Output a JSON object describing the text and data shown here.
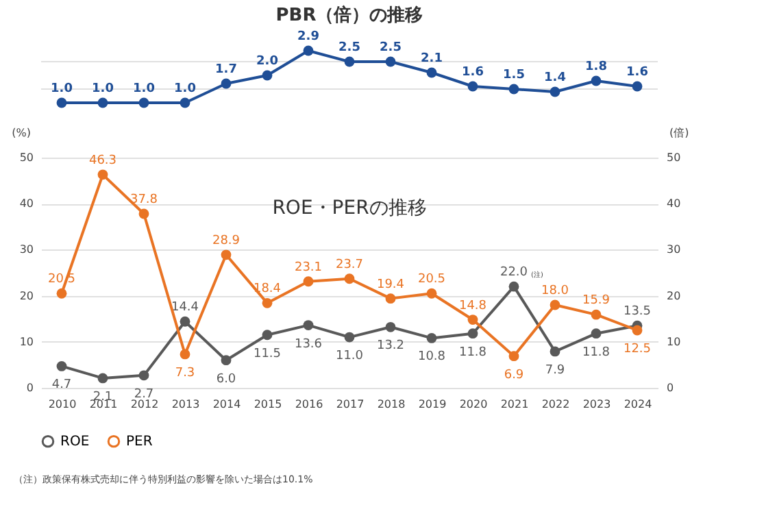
{
  "chart_data": [
    {
      "type": "line",
      "title": "PBR（倍）の推移",
      "categories": [
        "2010",
        "2011",
        "2012",
        "2013",
        "2014",
        "2015",
        "2016",
        "2017",
        "2018",
        "2019",
        "2020",
        "2021",
        "2022",
        "2023",
        "2024"
      ],
      "series": [
        {
          "color": "#1f4e96",
          "values": [
            1.0,
            1.0,
            1.0,
            1.0,
            1.7,
            2.0,
            2.9,
            2.5,
            2.5,
            2.1,
            1.6,
            1.5,
            1.4,
            1.8,
            1.6
          ],
          "value_labels": [
            "1.0",
            "1.0",
            "1.0",
            "1.0",
            "1.7",
            "2.0",
            "2.9",
            "2.5",
            "2.5",
            "2.1",
            "1.6",
            "1.5",
            "1.4",
            "1.8",
            "1.6"
          ]
        }
      ],
      "ref_lines": [
        {
          "axis": "y",
          "value": 1.5,
          "color": "#e0e0e0"
        },
        {
          "axis": "y",
          "value": 2.5,
          "color": "#e0e0e0"
        }
      ],
      "tick_labels": false,
      "data_labels": true,
      "marker": "circle",
      "line_style": "solid"
    },
    {
      "type": "line",
      "title": "ROE・PERの推移",
      "categories": [
        "2010",
        "2011",
        "2012",
        "2013",
        "2014",
        "2015",
        "2016",
        "2017",
        "2018",
        "2019",
        "2020",
        "2021",
        "2022",
        "2023",
        "2024"
      ],
      "series": [
        {
          "name": "ROE",
          "color": "#595959",
          "values": [
            4.7,
            2.1,
            2.7,
            14.4,
            6.0,
            11.5,
            13.6,
            11.0,
            13.2,
            10.8,
            11.8,
            22.0,
            7.9,
            11.8,
            13.5
          ],
          "value_labels": [
            "4.7",
            "2.1",
            "2.7",
            "14.4",
            "6.0",
            "11.5",
            "13.6",
            "11.0",
            "13.2",
            "10.8",
            "11.8",
            "22.0",
            "7.9",
            "11.8",
            "13.5"
          ]
        },
        {
          "name": "PER",
          "color": "#e97424",
          "axis": "y2",
          "values": [
            20.5,
            46.3,
            37.8,
            7.3,
            28.9,
            18.4,
            23.1,
            23.7,
            19.4,
            20.5,
            14.8,
            6.9,
            18.0,
            15.9,
            12.5
          ],
          "value_labels": [
            "20.5",
            "46.3",
            "37.8",
            "7.3",
            "28.9",
            "18.4",
            "23.1",
            "23.7",
            "19.4",
            "20.5",
            "14.8",
            "6.9",
            "18.0",
            "15.9",
            "12.5"
          ]
        }
      ],
      "ylabel": "(%)",
      "y2label": "(倍)",
      "ylim": [
        0,
        50
      ],
      "yticks": [
        0,
        10,
        20,
        30,
        40,
        50
      ],
      "y2lim": [
        0,
        50
      ],
      "y2ticks": [
        0,
        10,
        20,
        30,
        40,
        50
      ],
      "grid": "y",
      "legend": "bottom",
      "data_labels": true,
      "marker": "circle",
      "line_style": "solid",
      "annotations": [
        {
          "text": "(注)",
          "x": "2021",
          "y": 22.0
        },
        "（注）政策保有株式売却に伴う特別利益の影響を除いた場合は10.1%"
      ]
    }
  ]
}
